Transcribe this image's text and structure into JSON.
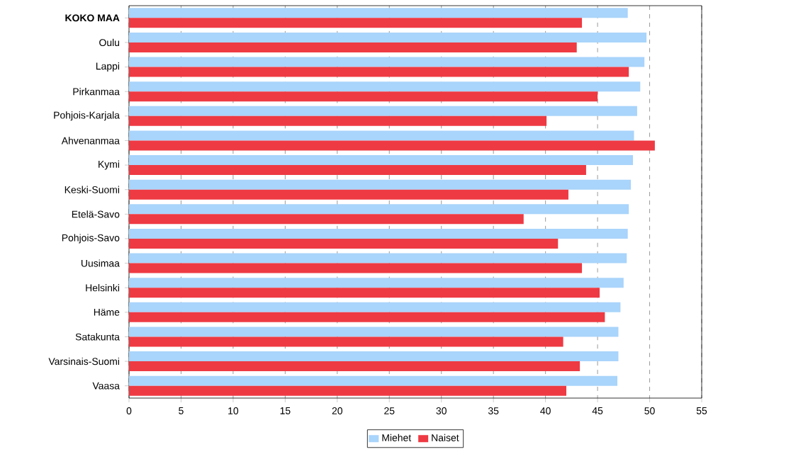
{
  "chart_data": {
    "type": "bar",
    "orientation": "horizontal",
    "categories": [
      "**KOKO MAA**",
      "Oulu",
      "Lappi",
      "Pirkanmaa",
      "Pohjois-Karjala",
      "Ahvenanmaa",
      "Kymi",
      "Keski-Suomi",
      "Etelä-Savo",
      "Pohjois-Savo",
      "Uusimaa",
      "Helsinki",
      "Häme",
      "Satakunta",
      "Varsinais-Suomi",
      "Vaasa"
    ],
    "series": [
      {
        "name": "Miehet",
        "color": "#a9d4fb",
        "values": [
          47.9,
          49.7,
          49.5,
          49.1,
          48.8,
          48.5,
          48.4,
          48.2,
          48.0,
          47.9,
          47.8,
          47.5,
          47.2,
          47.0,
          47.0,
          46.9
        ]
      },
      {
        "name": "Naiset",
        "color": "#ee3a43",
        "values": [
          43.5,
          43.0,
          48.0,
          45.0,
          40.1,
          50.5,
          43.9,
          42.2,
          37.9,
          41.2,
          43.5,
          45.2,
          45.7,
          41.7,
          43.3,
          42.0
        ]
      }
    ],
    "xlim": [
      0,
      55
    ],
    "xticks": [
      0,
      5,
      10,
      15,
      20,
      25,
      30,
      35,
      40,
      45,
      50,
      55
    ],
    "grid": "x",
    "legend": "bottom"
  }
}
